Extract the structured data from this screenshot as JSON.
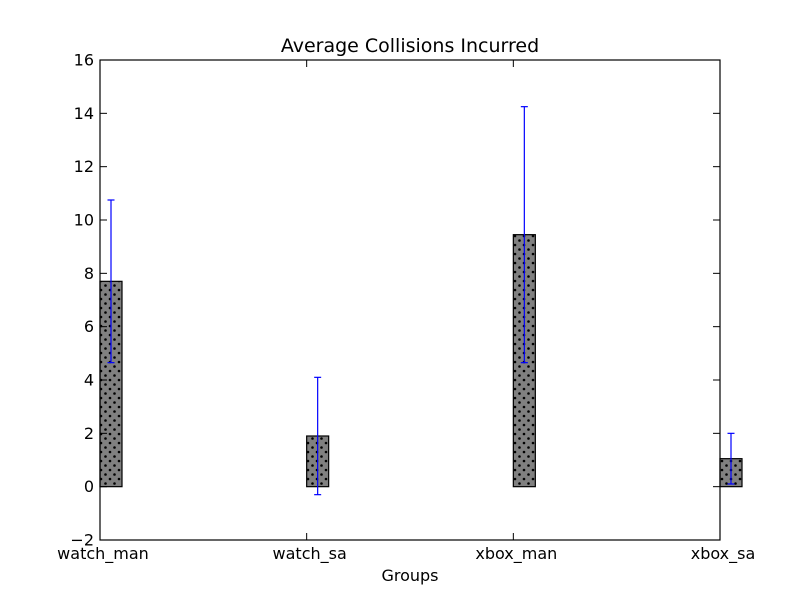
{
  "chart_data": {
    "type": "bar",
    "title": "Average Collisions Incurred",
    "xlabel": "Groups",
    "ylabel": "",
    "ylim": [
      -2,
      16
    ],
    "yticks": [
      -2,
      0,
      2,
      4,
      6,
      8,
      10,
      12,
      14,
      16
    ],
    "categories": [
      "watch_man",
      "watch_sa",
      "xbox_man",
      "xbox_sa"
    ],
    "values": [
      7.7,
      1.9,
      9.45,
      1.05
    ],
    "errors": [
      3.05,
      2.2,
      4.8,
      0.95
    ],
    "bar_color": "#808080",
    "bar_hatch": "dots",
    "error_color": "#0000ff",
    "grid": false,
    "legend": null
  }
}
